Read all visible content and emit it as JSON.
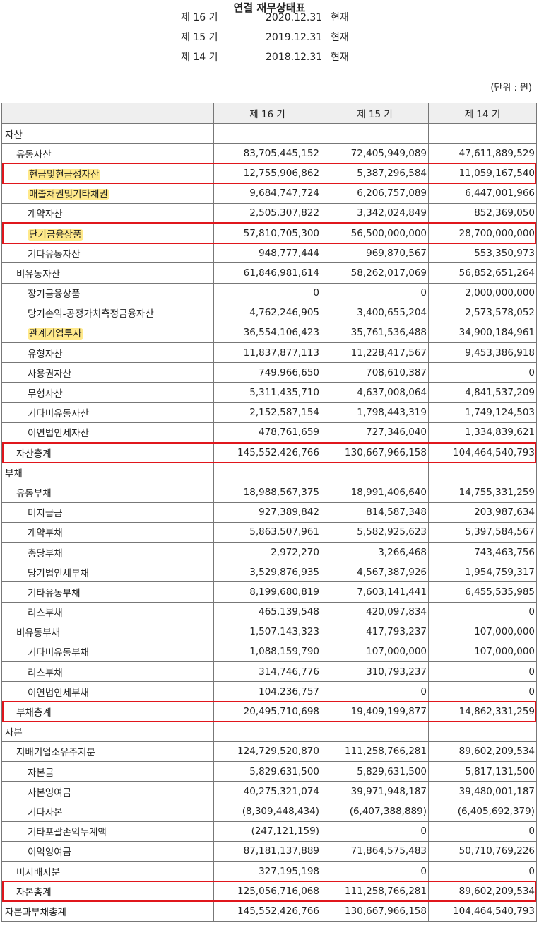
{
  "title": "연결 재무상태표",
  "periods": [
    {
      "label": "제 16 기",
      "date": "2020.12.31",
      "suffix": "현재"
    },
    {
      "label": "제 15 기",
      "date": "2019.12.31",
      "suffix": "현재"
    },
    {
      "label": "제 14 기",
      "date": "2018.12.31",
      "suffix": "현재"
    }
  ],
  "unit": "(단위 : 원)",
  "columns": [
    "제 16 기",
    "제 15 기",
    "제 14 기"
  ],
  "rows": [
    {
      "label": "자산",
      "values": [
        "",
        "",
        ""
      ],
      "indent": 0
    },
    {
      "label": "유동자산",
      "values": [
        "83,705,445,152",
        "72,405,949,089",
        "47,611,889,529"
      ],
      "indent": 1
    },
    {
      "label": "현금및현금성자산",
      "values": [
        "12,755,906,862",
        "5,387,296,584",
        "11,059,167,540"
      ],
      "indent": 2,
      "highlight": true,
      "boxed": true
    },
    {
      "label": "매출채권및기타채권",
      "values": [
        "9,684,747,724",
        "6,206,757,089",
        "6,447,001,966"
      ],
      "indent": 2,
      "highlight": true
    },
    {
      "label": "계약자산",
      "values": [
        "2,505,307,822",
        "3,342,024,849",
        "852,369,050"
      ],
      "indent": 2
    },
    {
      "label": "단기금융상품",
      "values": [
        "57,810,705,300",
        "56,500,000,000",
        "28,700,000,000"
      ],
      "indent": 2,
      "highlight": true,
      "boxed": true
    },
    {
      "label": "기타유동자산",
      "values": [
        "948,777,444",
        "969,870,567",
        "553,350,973"
      ],
      "indent": 2
    },
    {
      "label": "비유동자산",
      "values": [
        "61,846,981,614",
        "58,262,017,069",
        "56,852,651,264"
      ],
      "indent": 1
    },
    {
      "label": "장기금융상품",
      "values": [
        "0",
        "0",
        "2,000,000,000"
      ],
      "indent": 2
    },
    {
      "label": "당기손익-공정가치측정금융자산",
      "values": [
        "4,762,246,905",
        "3,400,655,204",
        "2,573,578,052"
      ],
      "indent": 2
    },
    {
      "label": "관계기업투자",
      "values": [
        "36,554,106,423",
        "35,761,536,488",
        "34,900,184,961"
      ],
      "indent": 2,
      "highlight": true
    },
    {
      "label": "유형자산",
      "values": [
        "11,837,877,113",
        "11,228,417,567",
        "9,453,386,918"
      ],
      "indent": 2
    },
    {
      "label": "사용권자산",
      "values": [
        "749,966,650",
        "708,610,387",
        "0"
      ],
      "indent": 2
    },
    {
      "label": "무형자산",
      "values": [
        "5,311,435,710",
        "4,637,008,064",
        "4,841,537,209"
      ],
      "indent": 2
    },
    {
      "label": "기타비유동자산",
      "values": [
        "2,152,587,154",
        "1,798,443,319",
        "1,749,124,503"
      ],
      "indent": 2
    },
    {
      "label": "이연법인세자산",
      "values": [
        "478,761,659",
        "727,346,040",
        "1,334,839,621"
      ],
      "indent": 2
    },
    {
      "label": "자산총계",
      "values": [
        "145,552,426,766",
        "130,667,966,158",
        "104,464,540,793"
      ],
      "indent": 1,
      "boxed": true
    },
    {
      "label": "부채",
      "values": [
        "",
        "",
        ""
      ],
      "indent": 0
    },
    {
      "label": "유동부채",
      "values": [
        "18,988,567,375",
        "18,991,406,640",
        "14,755,331,259"
      ],
      "indent": 1
    },
    {
      "label": "미지급금",
      "values": [
        "927,389,842",
        "814,587,348",
        "203,987,634"
      ],
      "indent": 2
    },
    {
      "label": "계약부채",
      "values": [
        "5,863,507,961",
        "5,582,925,623",
        "5,397,584,567"
      ],
      "indent": 2
    },
    {
      "label": "충당부채",
      "values": [
        "2,972,270",
        "3,266,468",
        "743,463,756"
      ],
      "indent": 2
    },
    {
      "label": "당기법인세부채",
      "values": [
        "3,529,876,935",
        "4,567,387,926",
        "1,954,759,317"
      ],
      "indent": 2
    },
    {
      "label": "기타유동부채",
      "values": [
        "8,199,680,819",
        "7,603,141,441",
        "6,455,535,985"
      ],
      "indent": 2
    },
    {
      "label": "리스부채",
      "values": [
        "465,139,548",
        "420,097,834",
        "0"
      ],
      "indent": 2
    },
    {
      "label": "비유동부채",
      "values": [
        "1,507,143,323",
        "417,793,237",
        "107,000,000"
      ],
      "indent": 1
    },
    {
      "label": "기타비유동부채",
      "values": [
        "1,088,159,790",
        "107,000,000",
        "107,000,000"
      ],
      "indent": 2
    },
    {
      "label": "리스부채",
      "values": [
        "314,746,776",
        "310,793,237",
        "0"
      ],
      "indent": 2
    },
    {
      "label": "이연법인세부채",
      "values": [
        "104,236,757",
        "0",
        "0"
      ],
      "indent": 2
    },
    {
      "label": "부채총계",
      "values": [
        "20,495,710,698",
        "19,409,199,877",
        "14,862,331,259"
      ],
      "indent": 1,
      "boxed": true
    },
    {
      "label": "자본",
      "values": [
        "",
        "",
        ""
      ],
      "indent": 0
    },
    {
      "label": "지배기업소유주지분",
      "values": [
        "124,729,520,870",
        "111,258,766,281",
        "89,602,209,534"
      ],
      "indent": 1
    },
    {
      "label": "자본금",
      "values": [
        "5,829,631,500",
        "5,829,631,500",
        "5,817,131,500"
      ],
      "indent": 2
    },
    {
      "label": "자본잉여금",
      "values": [
        "40,275,321,074",
        "39,971,948,187",
        "39,480,001,187"
      ],
      "indent": 2
    },
    {
      "label": "기타자본",
      "values": [
        "(8,309,448,434)",
        "(6,407,388,889)",
        "(6,405,692,379)"
      ],
      "indent": 2
    },
    {
      "label": "기타포괄손익누계액",
      "values": [
        "(247,121,159)",
        "0",
        "0"
      ],
      "indent": 2
    },
    {
      "label": "이익잉여금",
      "values": [
        "87,181,137,889",
        "71,864,575,483",
        "50,710,769,226"
      ],
      "indent": 2
    },
    {
      "label": "비지배지분",
      "values": [
        "327,195,198",
        "0",
        "0"
      ],
      "indent": 1
    },
    {
      "label": "자본총계",
      "values": [
        "125,056,716,068",
        "111,258,766,281",
        "89,602,209,534"
      ],
      "indent": 1,
      "boxed": true
    },
    {
      "label": "자본과부채총계",
      "values": [
        "145,552,426,766",
        "130,667,966,158",
        "104,464,540,793"
      ],
      "indent": 0
    }
  ],
  "colors": {
    "highlight": "#ffe98a",
    "box": "#e0161c",
    "header_bg": "#efefef",
    "border": "#777777"
  }
}
